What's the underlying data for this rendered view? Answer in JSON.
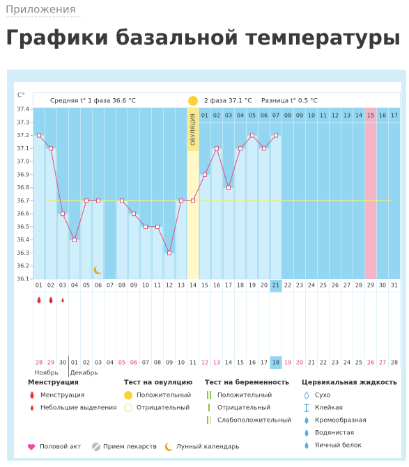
{
  "header": {
    "breadcrumb": "Приложения",
    "title": "Графики базальной температуры"
  },
  "chart_data": {
    "type": "line",
    "y_unit": "C°",
    "phase1_text": "Средняя t° 1 фаза 36.6 °C",
    "phase2_text": "2 фаза 37.1 °C",
    "difference_text": "Разница t° 0.5 °C",
    "ovulation_label": "ОВУЛЯЦИЯ",
    "ovulation_day": 14,
    "highlight_day": 29,
    "coverline": 36.7,
    "moon_day": 6,
    "menstruation_days": [
      1,
      2
    ],
    "spotting_days": [
      3
    ],
    "today_index": 20,
    "categories": [
      "01",
      "02",
      "03",
      "04",
      "05",
      "06",
      "07",
      "08",
      "09",
      "10",
      "11",
      "12",
      "13",
      "14",
      "15",
      "16",
      "17",
      "18",
      "19",
      "20",
      "21",
      "22",
      "23",
      "24",
      "25",
      "26",
      "27",
      "28",
      "29",
      "30",
      "31"
    ],
    "phase2_days": [
      "01",
      "02",
      "03",
      "04",
      "05",
      "06",
      "07",
      "08",
      "09",
      "10",
      "11",
      "12",
      "13",
      "14",
      "15",
      "16",
      "17"
    ],
    "values": [
      37.2,
      37.1,
      36.6,
      36.4,
      36.7,
      36.7,
      null,
      36.7,
      36.6,
      36.5,
      36.5,
      36.3,
      36.7,
      36.7,
      36.9,
      37.1,
      36.8,
      37.1,
      37.2,
      37.1,
      37.2,
      null,
      null,
      null,
      null,
      null,
      null,
      null,
      null,
      null,
      null
    ],
    "color": "#e0507a",
    "ylim": [
      36.1,
      37.4
    ],
    "yticks": [
      36.1,
      36.2,
      36.3,
      36.4,
      36.5,
      36.6,
      36.7,
      36.8,
      36.9,
      {
        "value": 37.0,
        "label": "37.0"
      },
      37.1,
      37.2,
      37.3,
      37.4
    ],
    "dates": [
      "28",
      "29",
      "30",
      "01",
      "02",
      "03",
      "04",
      "05",
      "06",
      "07",
      "08",
      "09",
      "10",
      "11",
      "12",
      "13",
      "14",
      "15",
      "16",
      "17",
      "18",
      "19",
      "20",
      "21",
      "22",
      "23",
      "24",
      "25",
      "26",
      "27",
      "28"
    ],
    "weekend_indices": [
      0,
      1,
      7,
      8,
      14,
      15,
      21,
      22,
      28,
      29
    ],
    "months": [
      "Ноябрь",
      "Декабрь"
    ],
    "month_start_indices": [
      0,
      3
    ]
  },
  "legend": {
    "menstruation": {
      "title": "Менструация",
      "items": [
        "Менструация",
        "Небольшие выделения"
      ]
    },
    "ovulation_test": {
      "title": "Тест на овуляцию",
      "items": [
        "Положительный",
        "Отрицательный"
      ]
    },
    "pregnancy_test": {
      "title": "Тест на беременность",
      "items": [
        "Положительный",
        "Отрицательный",
        "Слабоположительный"
      ]
    },
    "cervical_fluid": {
      "title": "Цервикальная жидкость",
      "items": [
        "Сухо",
        "Клейкая",
        "Кремообразная",
        "Водянистая",
        "Яичный белок"
      ]
    },
    "other": [
      "Половой акт",
      "Прием лекарств",
      "Лунный календарь"
    ]
  }
}
